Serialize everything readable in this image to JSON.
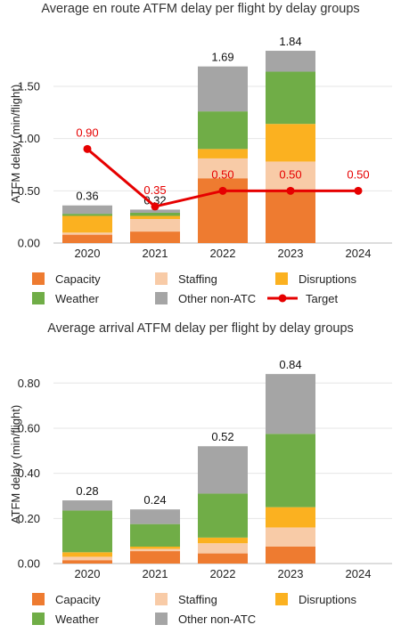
{
  "colors": {
    "Capacity": "#ee7b30",
    "Staffing": "#f8cba7",
    "Disruptions": "#fbb120",
    "Weather": "#70ad47",
    "Other non-ATC": "#a5a5a5",
    "Target": "#e60000"
  },
  "chart_data": [
    {
      "type": "bar",
      "stacked": true,
      "title": "Average en route ATFM delay per flight by delay groups",
      "xlabel": "",
      "ylabel": "ATFM delay (min/flight)",
      "categories": [
        "2020",
        "2021",
        "2022",
        "2023",
        "2024"
      ],
      "ylim": [
        0,
        1.9
      ],
      "yticks": [
        0.0,
        0.5,
        1.0,
        1.5
      ],
      "ytick_labels": [
        "0.00",
        "0.50",
        "1.00",
        "1.50"
      ],
      "grid": true,
      "legend": "bottom",
      "series": [
        {
          "name": "Capacity",
          "values": [
            0.08,
            0.11,
            0.62,
            0.5,
            0
          ]
        },
        {
          "name": "Staffing",
          "values": [
            0.02,
            0.12,
            0.19,
            0.28,
            0
          ]
        },
        {
          "name": "Disruptions",
          "values": [
            0.16,
            0.03,
            0.09,
            0.36,
            0
          ]
        },
        {
          "name": "Weather",
          "values": [
            0.02,
            0.03,
            0.36,
            0.5,
            0
          ]
        },
        {
          "name": "Other non-ATC",
          "values": [
            0.08,
            0.03,
            0.43,
            0.2,
            0
          ]
        }
      ],
      "totals": [
        "0.36",
        "0.32",
        "1.69",
        "1.84",
        ""
      ],
      "target": {
        "name": "Target",
        "values": [
          0.9,
          0.35,
          0.5,
          0.5,
          0.5
        ],
        "labels": [
          "0.90",
          "0.35",
          "0.50",
          "0.50",
          "0.50"
        ]
      }
    },
    {
      "type": "bar",
      "stacked": true,
      "title": "Average arrival ATFM delay per flight by delay groups",
      "xlabel": "",
      "ylabel": "ATFM delay (min/flight)",
      "categories": [
        "2020",
        "2021",
        "2022",
        "2023",
        "2024"
      ],
      "ylim": [
        0,
        0.88
      ],
      "yticks": [
        0.0,
        0.2,
        0.4,
        0.6,
        0.8
      ],
      "ytick_labels": [
        "0.00",
        "0.20",
        "0.40",
        "0.60",
        "0.80"
      ],
      "grid": true,
      "legend": "bottom",
      "series": [
        {
          "name": "Capacity",
          "values": [
            0.015,
            0.055,
            0.045,
            0.075,
            0
          ]
        },
        {
          "name": "Staffing",
          "values": [
            0.015,
            0.01,
            0.045,
            0.085,
            0
          ]
        },
        {
          "name": "Disruptions",
          "values": [
            0.02,
            0.01,
            0.025,
            0.09,
            0
          ]
        },
        {
          "name": "Weather",
          "values": [
            0.185,
            0.1,
            0.195,
            0.325,
            0
          ]
        },
        {
          "name": "Other non-ATC",
          "values": [
            0.045,
            0.065,
            0.21,
            0.265,
            0
          ]
        }
      ],
      "totals": [
        "0.28",
        "0.24",
        "0.52",
        "0.84",
        ""
      ]
    }
  ]
}
